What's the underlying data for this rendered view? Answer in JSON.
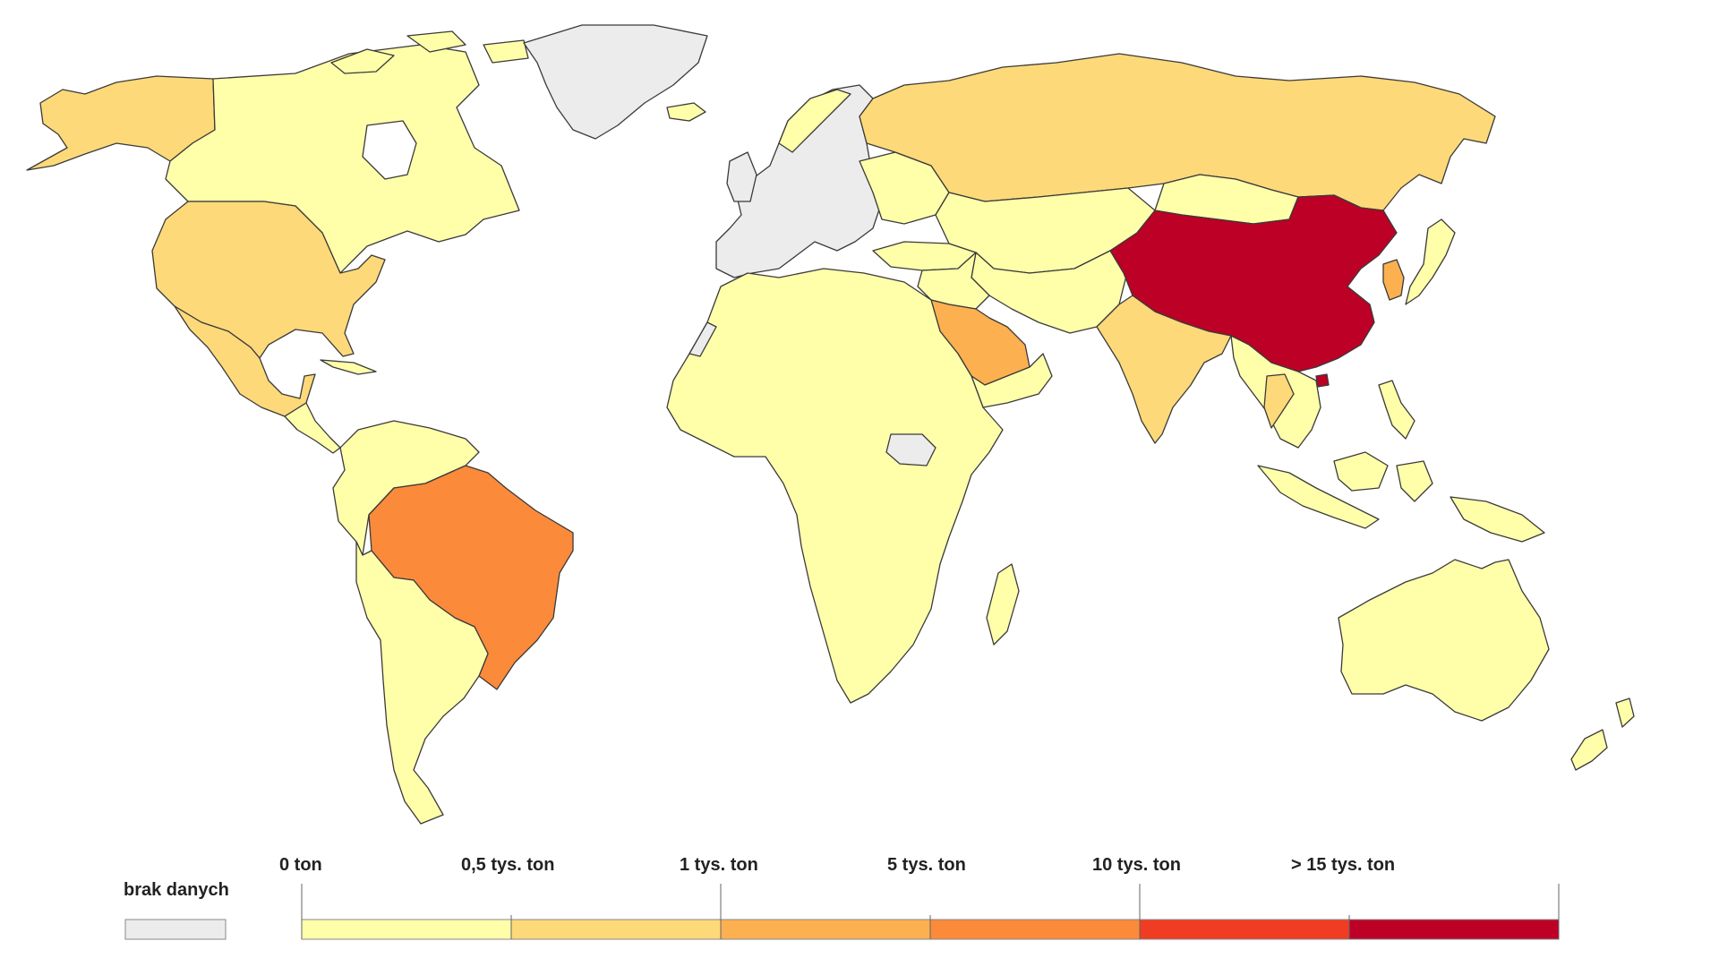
{
  "legend": {
    "nodata_label": "brak danych",
    "nodata_color": "#ececec",
    "tick_labels": [
      "0 ton",
      "0,5 tys. ton",
      "1 tys. ton",
      "5 tys. ton",
      "10 tys. ton",
      "> 15 tys. ton"
    ],
    "bin_colors": [
      "#ffffaa",
      "#fdd979",
      "#fcb050",
      "#fb8a3a",
      "#ef3c23",
      "#bd0026"
    ]
  },
  "regions": [
    {
      "name": "North America (Alaska / Canada / Greenland)",
      "class": "0 ton",
      "color": "#ffffaa"
    },
    {
      "name": "United States",
      "class": "0,5 tys. ton",
      "color": "#fdd979"
    },
    {
      "name": "Mexico",
      "class": "0,5 tys. ton",
      "color": "#fdd979"
    },
    {
      "name": "Brazil",
      "class": "5 tys. ton",
      "color": "#fb8a3a"
    },
    {
      "name": "Russia",
      "class": "0,5 tys. ton",
      "color": "#fdd979"
    },
    {
      "name": "China",
      "class": "> 15 tys. ton",
      "color": "#bd0026"
    },
    {
      "name": "India",
      "class": "0,5 tys. ton",
      "color": "#fdd979"
    },
    {
      "name": "Saudi Arabia",
      "class": "1 tys. ton",
      "color": "#fcb050"
    },
    {
      "name": "South Korea",
      "class": "1 tys. ton",
      "color": "#fcb050"
    },
    {
      "name": "Thailand",
      "class": "0,5 tys. ton",
      "color": "#fdd979"
    },
    {
      "name": "Australia",
      "class": "0 ton",
      "color": "#ffffaa"
    },
    {
      "name": "Greenland",
      "class": "brak danych",
      "color": "#ececec"
    },
    {
      "name": "Europe (EU)",
      "class": "brak danych",
      "color": "#ececec"
    }
  ]
}
